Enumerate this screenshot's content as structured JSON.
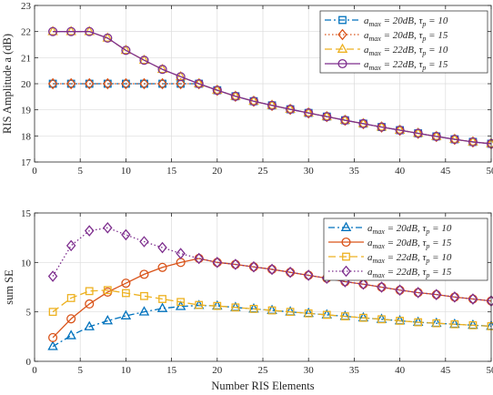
{
  "chart_data": [
    {
      "type": "line",
      "xlabel": "",
      "ylabel": "RIS Amplitude a (dB)",
      "xlim": [
        0,
        50
      ],
      "ylim": [
        17,
        23
      ],
      "xticks": [
        0,
        5,
        10,
        15,
        20,
        25,
        30,
        35,
        40,
        45,
        50
      ],
      "yticks": [
        17,
        18,
        19,
        20,
        21,
        22,
        23
      ],
      "grid": true,
      "legend_position": "top-right",
      "x": [
        2,
        4,
        6,
        8,
        10,
        12,
        14,
        16,
        18,
        20,
        22,
        24,
        26,
        28,
        30,
        32,
        34,
        36,
        38,
        40,
        42,
        44,
        46,
        48,
        50
      ],
      "series": [
        {
          "name": "a_max = 20dB, τ_p = 10",
          "color": "#0072bd",
          "dash": "7,3,2,3",
          "marker": "square",
          "values": [
            20,
            20,
            20,
            20,
            20,
            20,
            20,
            20,
            20,
            19.75,
            19.52,
            19.33,
            19.17,
            19.02,
            18.88,
            18.74,
            18.6,
            18.47,
            18.34,
            18.22,
            18.1,
            17.98,
            17.87,
            17.77,
            17.7
          ]
        },
        {
          "name": "a_max = 20dB, τ_p = 15",
          "color": "#d95319",
          "dash": "1.5,2.5",
          "marker": "diamond",
          "values": [
            20,
            20,
            20,
            20,
            20,
            20,
            20,
            20,
            20,
            19.75,
            19.52,
            19.33,
            19.17,
            19.02,
            18.88,
            18.74,
            18.6,
            18.47,
            18.34,
            18.22,
            18.1,
            17.98,
            17.87,
            17.77,
            17.7
          ]
        },
        {
          "name": "a_max = 22dB, τ_p = 10",
          "color": "#edb120",
          "dash": "8,4",
          "marker": "triangle",
          "values": [
            22,
            22,
            22,
            21.75,
            21.28,
            20.9,
            20.55,
            20.27,
            20.0,
            19.75,
            19.52,
            19.33,
            19.17,
            19.02,
            18.88,
            18.74,
            18.6,
            18.47,
            18.34,
            18.22,
            18.1,
            17.98,
            17.87,
            17.77,
            17.7
          ]
        },
        {
          "name": "a_max = 22dB, τ_p = 15",
          "color": "#7e2f8e",
          "dash": "",
          "marker": "circle",
          "values": [
            22,
            22,
            22,
            21.75,
            21.28,
            20.9,
            20.55,
            20.27,
            20.0,
            19.75,
            19.52,
            19.33,
            19.17,
            19.02,
            18.88,
            18.74,
            18.6,
            18.47,
            18.34,
            18.22,
            18.1,
            17.98,
            17.87,
            17.77,
            17.7
          ]
        }
      ]
    },
    {
      "type": "line",
      "xlabel": "Number RIS Elements",
      "ylabel": "sum SE",
      "xlim": [
        0,
        50
      ],
      "ylim": [
        0,
        15
      ],
      "xticks": [
        0,
        5,
        10,
        15,
        20,
        25,
        30,
        35,
        40,
        45,
        50
      ],
      "yticks": [
        0,
        5,
        10,
        15
      ],
      "grid": true,
      "legend_position": "top-right",
      "x": [
        2,
        4,
        6,
        8,
        10,
        12,
        14,
        16,
        18,
        20,
        22,
        24,
        26,
        28,
        30,
        32,
        34,
        36,
        38,
        40,
        42,
        44,
        46,
        48,
        50
      ],
      "series": [
        {
          "name": "a_max = 20dB, τ_p = 10",
          "color": "#0072bd",
          "dash": "7,3,2,3",
          "marker": "triangle",
          "values": [
            1.5,
            2.6,
            3.5,
            4.1,
            4.6,
            5.0,
            5.35,
            5.55,
            5.65,
            5.6,
            5.45,
            5.3,
            5.15,
            5.0,
            4.85,
            4.7,
            4.55,
            4.4,
            4.25,
            4.1,
            3.95,
            3.85,
            3.75,
            3.65,
            3.55
          ]
        },
        {
          "name": "a_max = 20dB, τ_p = 15",
          "color": "#d95319",
          "dash": "",
          "marker": "circle",
          "values": [
            2.4,
            4.3,
            5.8,
            7.0,
            7.9,
            8.8,
            9.5,
            10.0,
            10.4,
            10.0,
            9.8,
            9.55,
            9.3,
            9.0,
            8.7,
            8.4,
            8.05,
            7.8,
            7.5,
            7.2,
            6.95,
            6.75,
            6.5,
            6.3,
            6.1
          ]
        },
        {
          "name": "a_max = 22dB, τ_p = 10",
          "color": "#edb120",
          "dash": "8,4",
          "marker": "square",
          "values": [
            5.0,
            6.4,
            7.1,
            7.2,
            6.9,
            6.6,
            6.3,
            6.0,
            5.7,
            5.6,
            5.45,
            5.3,
            5.15,
            5.0,
            4.85,
            4.7,
            4.55,
            4.4,
            4.25,
            4.1,
            3.95,
            3.85,
            3.75,
            3.65,
            3.55
          ]
        },
        {
          "name": "a_max = 22dB, τ_p = 15",
          "color": "#7e2f8e",
          "dash": "1.5,2.5",
          "marker": "diamond",
          "values": [
            8.6,
            11.7,
            13.2,
            13.5,
            12.8,
            12.1,
            11.5,
            10.9,
            10.4,
            10.0,
            9.8,
            9.55,
            9.3,
            9.0,
            8.7,
            8.4,
            8.05,
            7.8,
            7.5,
            7.2,
            6.95,
            6.75,
            6.5,
            6.3,
            6.1
          ]
        }
      ]
    }
  ]
}
